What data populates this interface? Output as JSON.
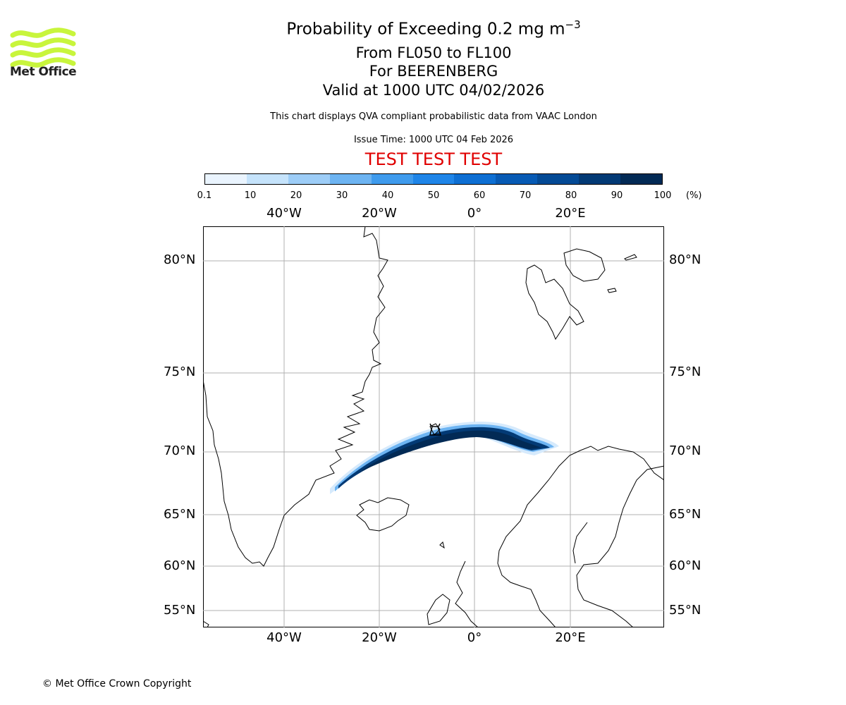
{
  "header": {
    "title_prefix": "Probability of Exceeding 0.2 mg m",
    "title_exponent": "−3",
    "line1": "From FL050 to FL100",
    "line2": "For BEERENBERG",
    "line3": "Valid at 1000 UTC 04/02/2026",
    "description": "This chart displays QVA compliant probabilistic data from VAAC London",
    "issue_time": "Issue Time: 1000 UTC 04 Feb 2026",
    "test_banner": "TEST TEST TEST"
  },
  "logo": {
    "text": "Met Office",
    "color": "#c8f53c"
  },
  "colorbar": {
    "ticks": [
      "0.1",
      "10",
      "20",
      "30",
      "40",
      "50",
      "60",
      "70",
      "80",
      "90",
      "100"
    ],
    "unit": "(%)",
    "colors": [
      "#eaf4fe",
      "#c5e3fb",
      "#9dcdf7",
      "#6db4f2",
      "#3f9bed",
      "#1f85e8",
      "#0e6fd3",
      "#075ab4",
      "#044a95",
      "#033a75",
      "#022a55"
    ]
  },
  "map": {
    "lon_labels": [
      "40°W",
      "20°W",
      "0°",
      "20°E"
    ],
    "lat_labels": [
      "80°N",
      "75°N",
      "70°N",
      "65°N",
      "60°N",
      "55°N"
    ],
    "gridline_color": "#b0b0b0",
    "volcano_marker": "volcano-icon"
  },
  "footer": {
    "copyright": "© Met Office Crown Copyright"
  }
}
